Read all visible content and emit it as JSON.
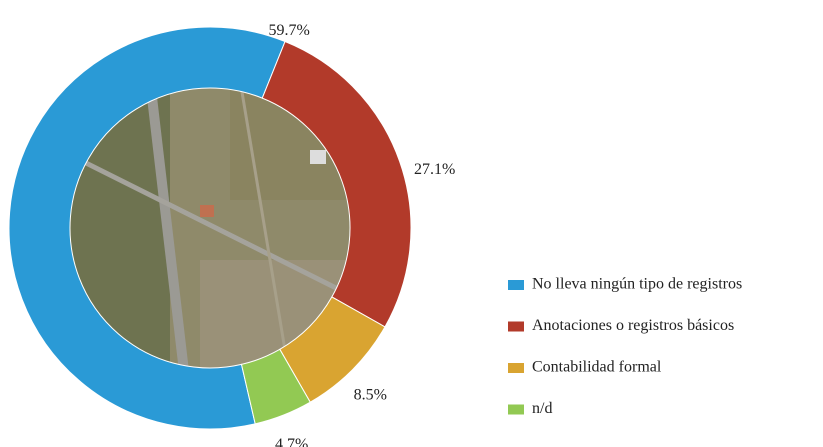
{
  "chart_data": {
    "type": "donut",
    "categories": [
      "No lleva ningún tipo de registros",
      "Anotaciones o registros básicos",
      "Contabilidad formal",
      "n/d"
    ],
    "values": [
      59.7,
      27.1,
      8.5,
      4.7
    ],
    "value_labels": [
      "59.7%",
      "27.1%",
      "8.5%",
      "4.7%"
    ],
    "colors": [
      "#2a9ad6",
      "#b23a2a",
      "#d9a431",
      "#92c953"
    ],
    "legend": "right"
  }
}
